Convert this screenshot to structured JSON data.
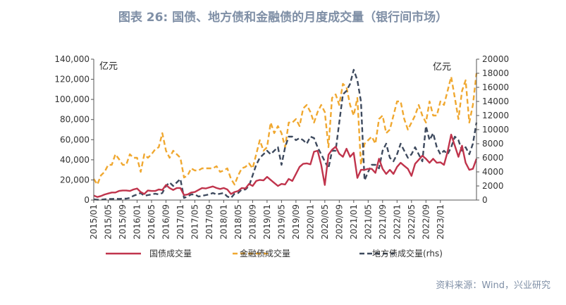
{
  "header": {
    "title": "图表 26: 国债、地方债和金融债的月度成交量（银行间市场）"
  },
  "footer": {
    "source": "资料来源：Wind，兴业研究"
  },
  "chart_data": {
    "type": "line",
    "title": "图表 26: 国债、地方债和金融债的月度成交量（银行间市场）",
    "y_left_unit": "亿元",
    "y_right_unit": "亿元",
    "ylim_left": [
      0,
      140000
    ],
    "ylim_right": [
      0,
      20000
    ],
    "yticks_left": [
      "0",
      "20,000",
      "40,000",
      "60,000",
      "80,000",
      "100,000",
      "120,000",
      "140,000"
    ],
    "yticks_right": [
      "0",
      "2000",
      "4000",
      "6000",
      "8000",
      "10000",
      "12000",
      "14000",
      "16000",
      "18000",
      "20000"
    ],
    "x_tick_labels": [
      "2015/01",
      "2015/05",
      "2015/09",
      "2016/01",
      "2016/05",
      "2016/09",
      "2017/01",
      "2017/05",
      "2017/09",
      "2018/01",
      "2018/05",
      "2018/09",
      "2019/01",
      "2019/05",
      "2019/09",
      "2020/01",
      "2020/05",
      "2020/09",
      "2021/01",
      "2021/05",
      "2021/09",
      "2022/01",
      "2022/05",
      "2022/09",
      "2023/01"
    ],
    "x_start": "2015/01",
    "grid": false,
    "legend_position": "bottom",
    "series": [
      {
        "name": "国债成交量",
        "axis": "left",
        "color": "#c0344c",
        "dash": "solid",
        "values": [
          4500,
          3000,
          4000,
          5500,
          6500,
          7500,
          7500,
          9000,
          9500,
          9500,
          9000,
          10500,
          11500,
          8000,
          6000,
          9500,
          9000,
          9000,
          10500,
          10000,
          15000,
          12000,
          10000,
          12000,
          12000,
          5000,
          5500,
          7500,
          8000,
          10000,
          12000,
          11500,
          12500,
          13500,
          12000,
          11000,
          12000,
          10500,
          6000,
          8000,
          9000,
          12000,
          11500,
          16000,
          14000,
          19000,
          20000,
          19500,
          23000,
          20000,
          17000,
          14000,
          16000,
          15500,
          21000,
          19000,
          26000,
          33000,
          36000,
          36500,
          35500,
          48000,
          49000,
          35000,
          15000,
          45000,
          50000,
          53000,
          46000,
          43000,
          51000,
          43000,
          47000,
          22000,
          30000,
          30000,
          31000,
          31000,
          27000,
          41000,
          31000,
          26000,
          30000,
          26000,
          33000,
          37000,
          34000,
          31000,
          24000,
          36000,
          40000,
          44000,
          41000,
          37000,
          41000,
          37000,
          37500,
          35000,
          48000,
          65000,
          54000,
          43000,
          54000,
          37000,
          30000,
          31000,
          41000
        ]
      },
      {
        "name": "金融债成交量",
        "axis": "right",
        "color": "#f0a830",
        "dash": "dashed",
        "values": [
          3000,
          2200,
          3500,
          4000,
          5000,
          5000,
          6500,
          5800,
          5000,
          5000,
          6500,
          6000,
          6000,
          4000,
          6500,
          6000,
          6500,
          7200,
          7500,
          9500,
          7000,
          6000,
          7000,
          6500,
          6000,
          3200,
          3500,
          4500,
          4200,
          4200,
          4500,
          4500,
          4500,
          4500,
          4800,
          4000,
          4200,
          4500,
          3000,
          2200,
          3500,
          4500,
          4700,
          5200,
          4500,
          6500,
          8500,
          7000,
          7500,
          11000,
          9500,
          10500,
          9500,
          7500,
          11000,
          11000,
          11500,
          10500,
          13000,
          13500,
          12500,
          11000,
          12500,
          13500,
          12500,
          7500,
          14500,
          15000,
          13500,
          16500,
          16000,
          13500,
          12000,
          14500,
          5000,
          8000,
          8500,
          9000,
          8000,
          11500,
          12000,
          9500,
          10000,
          12000,
          14000,
          14000,
          11500,
          10000,
          11000,
          12000,
          13500,
          12000,
          11000,
          14000,
          12000,
          12000,
          14000,
          13500,
          15500,
          17500,
          14500,
          11500,
          15500,
          17000,
          11000,
          13500,
          18000
        ]
      },
      {
        "name": "地方债成交量(rhs)",
        "axis": "right",
        "color": "#3e4a5e",
        "dash": "dashed",
        "values": [
          100,
          50,
          50,
          100,
          150,
          150,
          200,
          150,
          200,
          200,
          300,
          600,
          800,
          1000,
          600,
          700,
          800,
          900,
          800,
          1000,
          2000,
          2500,
          2000,
          2500,
          3000,
          300,
          500,
          800,
          800,
          500,
          600,
          700,
          800,
          1000,
          800,
          900,
          1000,
          500,
          300,
          900,
          1000,
          1500,
          1500,
          2000,
          3500,
          5000,
          6000,
          6500,
          7000,
          6500,
          7000,
          7500,
          5000,
          7500,
          9000,
          9000,
          8500,
          8800,
          8500,
          8000,
          9000,
          8800,
          7500,
          6500,
          5500,
          4500,
          7000,
          7000,
          11000,
          15000,
          15500,
          16500,
          18500,
          17000,
          14000,
          2800,
          4000,
          5000,
          5000,
          4500,
          7000,
          8000,
          6000,
          5500,
          6500,
          8000,
          7000,
          6000,
          6500,
          7500,
          6500,
          5500,
          10500,
          8500,
          9500,
          7500,
          6500,
          7000,
          6500,
          7500,
          9000,
          8500,
          7000,
          7500,
          6500,
          8000,
          11000
        ]
      }
    ]
  }
}
